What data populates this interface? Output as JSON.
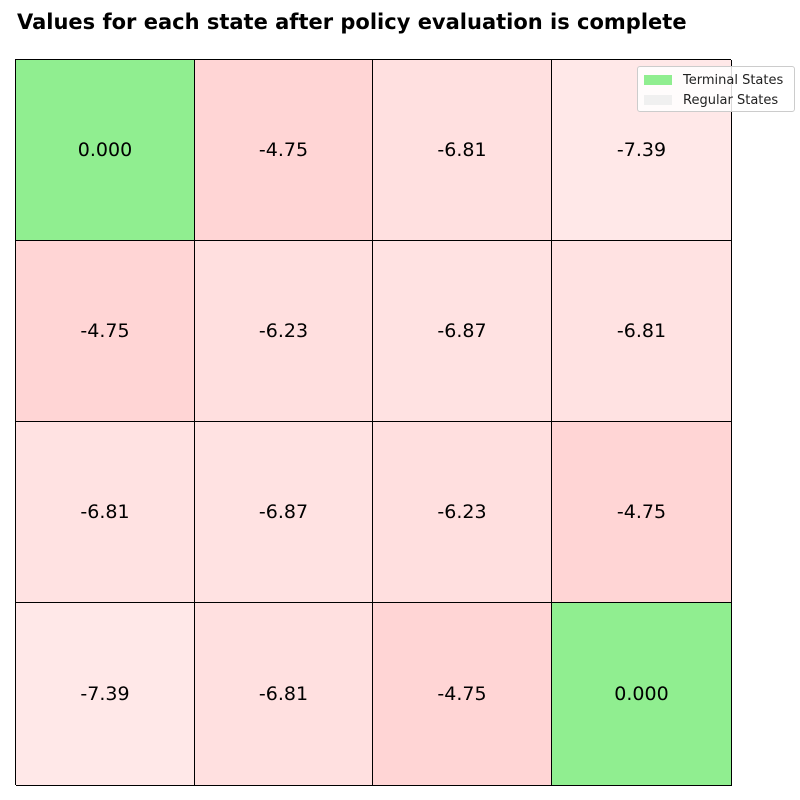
{
  "title": "Values for each state after policy evaluation is complete",
  "colors": {
    "terminal": "#90ee90",
    "regular": "#f0f0f0"
  },
  "legend": [
    {
      "label": "Terminal States",
      "color": "#90ee90"
    },
    {
      "label": "Regular States",
      "color": "#f0f0f0"
    }
  ],
  "grid": {
    "rows": [
      [
        {
          "value": "0.000",
          "terminal": true,
          "color": "#90ee90"
        },
        {
          "value": "-4.75",
          "terminal": false,
          "color": "#ffd5d5"
        },
        {
          "value": "-6.81",
          "terminal": false,
          "color": "#ffe0e0"
        },
        {
          "value": "-7.39",
          "terminal": false,
          "color": "#ffe8e8"
        }
      ],
      [
        {
          "value": "-4.75",
          "terminal": false,
          "color": "#ffd5d5"
        },
        {
          "value": "-6.23",
          "terminal": false,
          "color": "#ffdfdf"
        },
        {
          "value": "-6.87",
          "terminal": false,
          "color": "#ffe2e2"
        },
        {
          "value": "-6.81",
          "terminal": false,
          "color": "#ffe2e2"
        }
      ],
      [
        {
          "value": "-6.81",
          "terminal": false,
          "color": "#ffe2e2"
        },
        {
          "value": "-6.87",
          "terminal": false,
          "color": "#ffe2e2"
        },
        {
          "value": "-6.23",
          "terminal": false,
          "color": "#ffdfdf"
        },
        {
          "value": "-4.75",
          "terminal": false,
          "color": "#ffd5d5"
        }
      ],
      [
        {
          "value": "-7.39",
          "terminal": false,
          "color": "#ffe8e8"
        },
        {
          "value": "-6.81",
          "terminal": false,
          "color": "#ffe0e0"
        },
        {
          "value": "-4.75",
          "terminal": false,
          "color": "#ffd5d5"
        },
        {
          "value": "0.000",
          "terminal": true,
          "color": "#90ee90"
        }
      ]
    ]
  }
}
